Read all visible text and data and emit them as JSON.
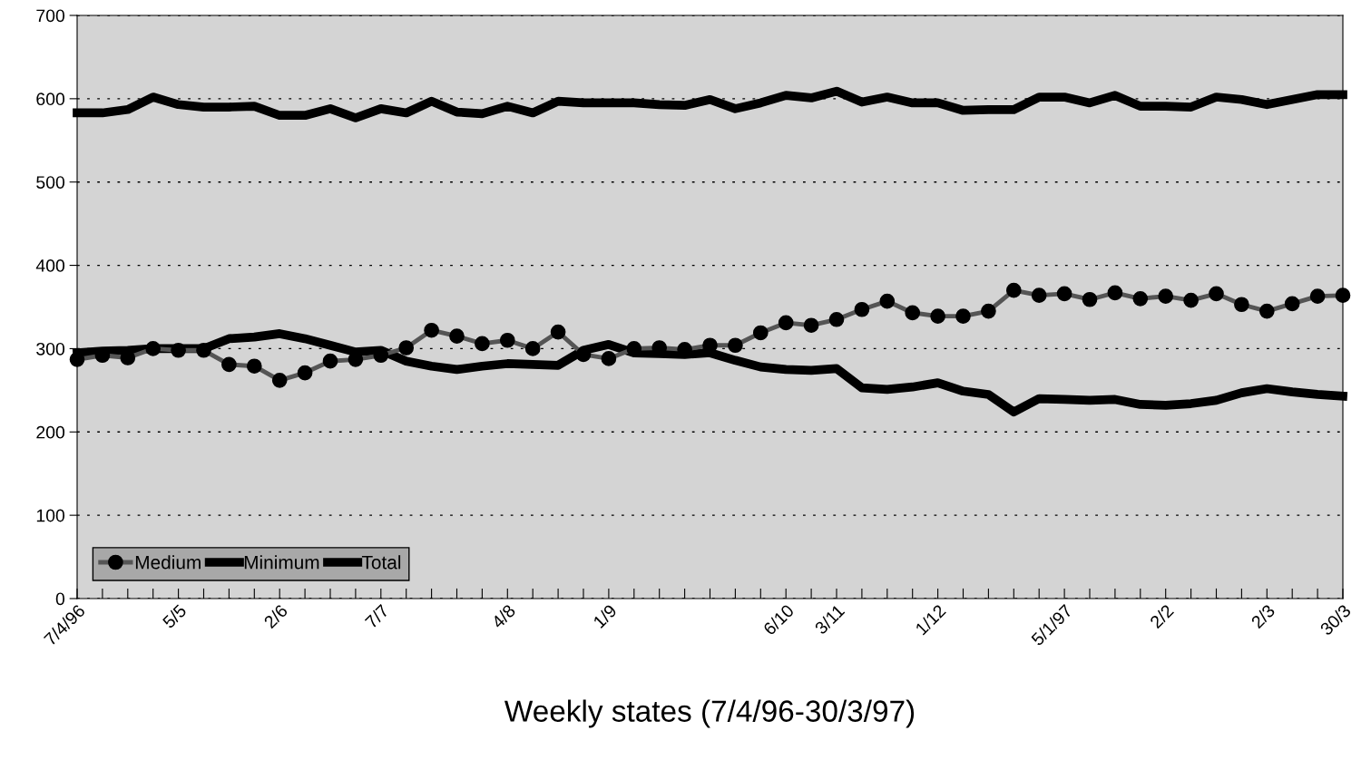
{
  "chart_data": {
    "type": "line",
    "xlabel": "Weekly states (7/4/96-30/3/97)",
    "categories": [
      "7/4/96",
      null,
      null,
      null,
      "5/5",
      null,
      null,
      null,
      "2/6",
      null,
      null,
      null,
      "7/7",
      null,
      null,
      null,
      null,
      "4/8",
      null,
      null,
      null,
      "1/9",
      null,
      null,
      null,
      null,
      null,
      null,
      "6/10",
      null,
      "3/11",
      null,
      null,
      null,
      "1/12",
      null,
      null,
      null,
      null,
      "5/1/97",
      null,
      null,
      null,
      "2/2",
      null,
      null,
      null,
      "2/3",
      null,
      null,
      "30/3"
    ],
    "series": [
      {
        "name": "Medium",
        "color": "#000000",
        "marker": "circle",
        "values": [
          287,
          292,
          289,
          300,
          298,
          298,
          281,
          279,
          262,
          271,
          285,
          287,
          292,
          301,
          322,
          315,
          306,
          310,
          300,
          320,
          293,
          288,
          300,
          301,
          299,
          304,
          304,
          319,
          331,
          328,
          335,
          347,
          357,
          343,
          339,
          339,
          345,
          370,
          364,
          366,
          359,
          367,
          360,
          363,
          358,
          366,
          353,
          345,
          354,
          363,
          364
        ]
      },
      {
        "name": "Minimum",
        "color": "#000000",
        "marker": "none",
        "values": [
          295,
          297,
          298,
          300,
          300,
          300,
          312,
          314,
          318,
          312,
          304,
          296,
          298,
          285,
          279,
          275,
          279,
          282,
          281,
          280,
          298,
          305,
          295,
          294,
          293,
          295,
          286,
          278,
          275,
          274,
          276,
          253,
          251,
          254,
          259,
          249,
          245,
          224,
          240,
          239,
          238,
          239,
          233,
          232,
          234,
          238,
          247,
          252,
          248,
          245,
          243
        ]
      },
      {
        "name": "Total",
        "color": "#000000",
        "marker": "none",
        "values": [
          583,
          583,
          587,
          602,
          593,
          590,
          590,
          591,
          580,
          580,
          588,
          577,
          588,
          583,
          597,
          584,
          582,
          591,
          583,
          597,
          595,
          595,
          595,
          593,
          592,
          599,
          588,
          595,
          604,
          601,
          609,
          596,
          602,
          595,
          595,
          586,
          587,
          587,
          602,
          602,
          595,
          604,
          591,
          591,
          590,
          602,
          599,
          593,
          599,
          605,
          605
        ]
      }
    ],
    "ylim": [
      0,
      700
    ],
    "yticks": [
      0,
      100,
      200,
      300,
      400,
      500,
      600,
      700
    ],
    "grid": "y",
    "legend": "bottom left",
    "line_style": "solid"
  }
}
